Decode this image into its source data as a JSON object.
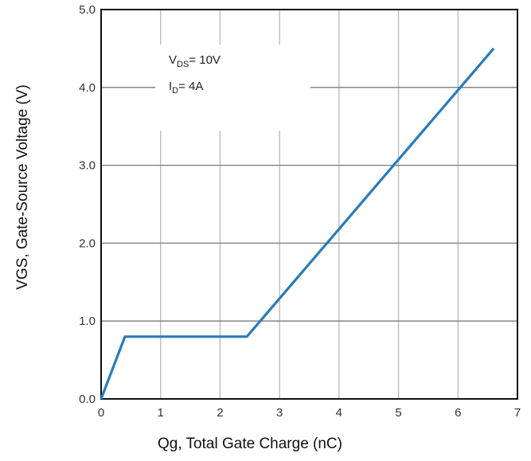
{
  "chart_data": {
    "type": "line",
    "xlabel": "Qg, Total Gate Charge (nC)",
    "ylabel": "VGS, Gate-Source Voltage (V)",
    "xlim": [
      0,
      7
    ],
    "ylim": [
      0,
      5
    ],
    "x_ticks": [
      "0",
      "1",
      "2",
      "3",
      "4",
      "5",
      "6",
      "7"
    ],
    "y_ticks": [
      "0.0",
      "1.0",
      "2.0",
      "3.0",
      "4.0",
      "5.0"
    ],
    "grid": true,
    "series": [
      {
        "color": "#2a7ab8",
        "points": [
          [
            0,
            0
          ],
          [
            0.4,
            0.8
          ],
          [
            2.45,
            0.8
          ],
          [
            6.6,
            4.5
          ]
        ]
      }
    ],
    "annotations": {
      "vds": {
        "main": "V",
        "sub": "DS",
        "rest": "= 10V"
      },
      "id": {
        "main": "I",
        "sub": "D",
        "rest": "= 4A"
      }
    }
  }
}
